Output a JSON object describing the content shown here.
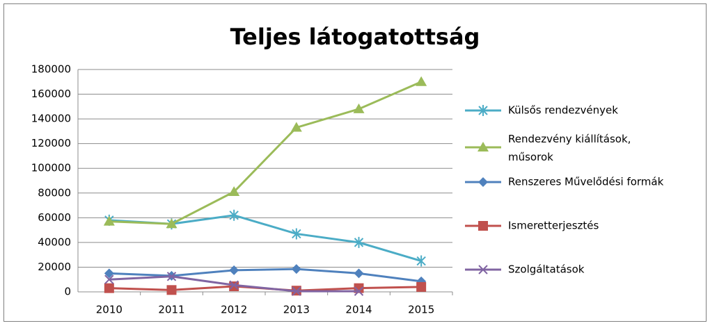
{
  "chart_data": {
    "type": "line",
    "title": "Teljes látogatottság",
    "categories": [
      "2010",
      "2011",
      "2012",
      "2013",
      "2014",
      "2015"
    ],
    "series": [
      {
        "name": "Külsős rendezvények",
        "color": "#4bacc6",
        "marker": "asterisk",
        "values": [
          58000,
          55000,
          62000,
          47000,
          40000,
          25000
        ]
      },
      {
        "name": "Rendezvény kiállítások, műsorok",
        "color": "#9bbb59",
        "marker": "triangle",
        "values": [
          57000,
          55000,
          81000,
          133000,
          148000,
          170000
        ]
      },
      {
        "name": "Renszeres Művelődési formák",
        "color": "#4f81bd",
        "marker": "diamond",
        "values": [
          15000,
          13000,
          17500,
          18500,
          15000,
          8500
        ]
      },
      {
        "name": "Ismeretterjesztés",
        "color": "#c0504d",
        "marker": "square",
        "values": [
          3000,
          1500,
          4500,
          1000,
          3000,
          4000
        ]
      },
      {
        "name": "Szolgáltatások",
        "color": "#8064a2",
        "marker": "x",
        "values": [
          10000,
          12500,
          5500,
          500,
          500,
          null
        ]
      }
    ],
    "ylim": [
      0,
      180000
    ],
    "yticks": [
      0,
      20000,
      40000,
      60000,
      80000,
      100000,
      120000,
      140000,
      160000,
      180000
    ],
    "grid": true,
    "legend": "right"
  }
}
